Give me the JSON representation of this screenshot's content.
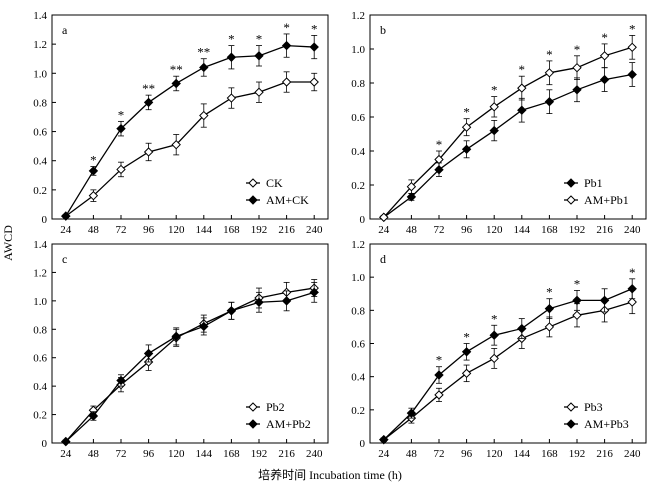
{
  "figure": {
    "ylabel": "AWCD",
    "xlabel": "培养时间 Incubation time (h)"
  },
  "chart_data": [
    {
      "type": "line",
      "panel": "a",
      "x": [
        24,
        48,
        72,
        96,
        120,
        144,
        168,
        192,
        216,
        240
      ],
      "ylim": [
        0,
        1.4
      ],
      "yticks": [
        "0",
        "0.2",
        "0.4",
        "0.6",
        "0.8",
        "1.0",
        "1.2",
        "1.4"
      ],
      "legend_position": "bottom-right",
      "series": [
        {
          "name": "CK",
          "marker": "open-diamond",
          "values": [
            0.02,
            0.16,
            0.34,
            0.46,
            0.51,
            0.71,
            0.83,
            0.87,
            0.94,
            0.94
          ],
          "errors": [
            0.01,
            0.04,
            0.05,
            0.06,
            0.07,
            0.08,
            0.07,
            0.07,
            0.07,
            0.06
          ]
        },
        {
          "name": "AM+CK",
          "marker": "filled-diamond",
          "values": [
            0.02,
            0.33,
            0.62,
            0.8,
            0.93,
            1.04,
            1.11,
            1.12,
            1.19,
            1.18
          ],
          "errors": [
            0.01,
            0.03,
            0.05,
            0.05,
            0.05,
            0.06,
            0.08,
            0.07,
            0.08,
            0.08
          ]
        }
      ],
      "significance": [
        "",
        "*",
        "*",
        "**",
        "**",
        "**",
        "*",
        "*",
        "*",
        "*"
      ]
    },
    {
      "type": "line",
      "panel": "b",
      "x": [
        24,
        48,
        72,
        96,
        120,
        144,
        168,
        192,
        216,
        240
      ],
      "ylim": [
        0,
        1.2
      ],
      "yticks": [
        "0",
        "0.2",
        "0.4",
        "0.6",
        "0.8",
        "1.0",
        "1.2"
      ],
      "legend_position": "bottom-right",
      "series": [
        {
          "name": "Pb1",
          "marker": "filled-diamond",
          "values": [
            0.01,
            0.13,
            0.29,
            0.41,
            0.52,
            0.64,
            0.69,
            0.76,
            0.82,
            0.85
          ],
          "errors": [
            0.01,
            0.02,
            0.04,
            0.05,
            0.06,
            0.07,
            0.07,
            0.07,
            0.07,
            0.07
          ]
        },
        {
          "name": "AM+Pb1",
          "marker": "open-diamond",
          "values": [
            0.01,
            0.19,
            0.35,
            0.54,
            0.66,
            0.77,
            0.86,
            0.89,
            0.96,
            1.01
          ],
          "errors": [
            0.01,
            0.04,
            0.05,
            0.05,
            0.06,
            0.07,
            0.07,
            0.07,
            0.07,
            0.07
          ]
        }
      ],
      "significance": [
        "",
        "",
        "*",
        "*",
        "*",
        "*",
        "*",
        "*",
        "*",
        "*"
      ]
    },
    {
      "type": "line",
      "panel": "c",
      "x": [
        24,
        48,
        72,
        96,
        120,
        144,
        168,
        192,
        216,
        240
      ],
      "ylim": [
        0,
        1.4
      ],
      "yticks": [
        "0",
        "0.2",
        "0.4",
        "0.6",
        "0.8",
        "1.0",
        "1.2",
        "1.4"
      ],
      "legend_position": "bottom-right",
      "series": [
        {
          "name": "Pb2",
          "marker": "open-diamond",
          "values": [
            0.01,
            0.23,
            0.41,
            0.57,
            0.74,
            0.84,
            0.93,
            1.02,
            1.06,
            1.09
          ],
          "errors": [
            0.01,
            0.03,
            0.05,
            0.06,
            0.06,
            0.06,
            0.06,
            0.07,
            0.07,
            0.06
          ]
        },
        {
          "name": "AM+Pb2",
          "marker": "filled-diamond",
          "values": [
            0.01,
            0.19,
            0.44,
            0.63,
            0.75,
            0.82,
            0.93,
            0.99,
            1.0,
            1.06
          ],
          "errors": [
            0.01,
            0.03,
            0.04,
            0.06,
            0.06,
            0.06,
            0.06,
            0.07,
            0.07,
            0.07
          ]
        }
      ],
      "significance": [
        "",
        "",
        "",
        "",
        "",
        "",
        "",
        "",
        "",
        ""
      ]
    },
    {
      "type": "line",
      "panel": "d",
      "x": [
        24,
        48,
        72,
        96,
        120,
        144,
        168,
        192,
        216,
        240
      ],
      "ylim": [
        0,
        1.2
      ],
      "yticks": [
        "0",
        "0.2",
        "0.4",
        "0.6",
        "0.8",
        "1.0",
        "1.2"
      ],
      "legend_position": "bottom-right",
      "series": [
        {
          "name": "Pb3",
          "marker": "open-diamond",
          "values": [
            0.02,
            0.15,
            0.29,
            0.42,
            0.51,
            0.63,
            0.7,
            0.77,
            0.8,
            0.85
          ],
          "errors": [
            0.01,
            0.03,
            0.04,
            0.05,
            0.06,
            0.06,
            0.06,
            0.07,
            0.07,
            0.07
          ]
        },
        {
          "name": "AM+Pb3",
          "marker": "filled-diamond",
          "values": [
            0.02,
            0.18,
            0.41,
            0.55,
            0.65,
            0.69,
            0.81,
            0.86,
            0.86,
            0.93
          ],
          "errors": [
            0.01,
            0.03,
            0.05,
            0.05,
            0.06,
            0.06,
            0.06,
            0.06,
            0.07,
            0.06
          ]
        }
      ],
      "significance": [
        "",
        "",
        "*",
        "*",
        "*",
        "",
        "*",
        "*",
        "",
        "*"
      ]
    }
  ]
}
